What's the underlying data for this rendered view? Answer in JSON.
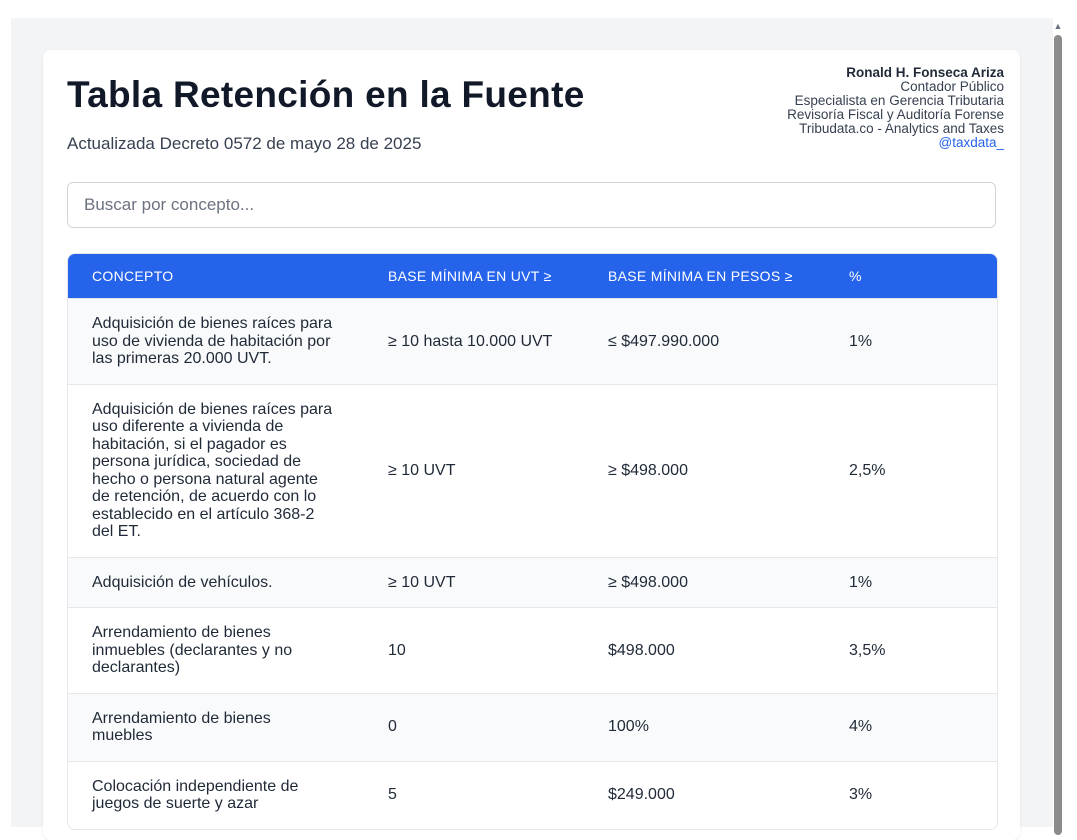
{
  "header": {
    "title": "Tabla Retención en la Fuente",
    "subtitle": "Actualizada Decreto 0572 de mayo 28 de 2025"
  },
  "author": {
    "name": "Ronald H. Fonseca Ariza",
    "line1": "Contador Público",
    "line2": "Especialista en Gerencia Tributaria",
    "line3": "Revisoría Fiscal y Auditoría Forense",
    "line4": "Tribudata.co - Analytics and Taxes",
    "handle": "@taxdata_"
  },
  "search": {
    "placeholder": "Buscar por concepto..."
  },
  "table": {
    "headers": [
      "CONCEPTO",
      "BASE MÍNIMA EN UVT ≥",
      "BASE MÍNIMA EN PESOS ≥",
      "%"
    ],
    "rows": [
      [
        "Adquisición de bienes raíces para uso de vivienda de habitación por las primeras 20.000 UVT.",
        "≥ 10 hasta 10.000 UVT",
        "≤ $497.990.000",
        "1%"
      ],
      [
        "Adquisición de bienes raíces para uso diferente a vivienda de habitación, si el pagador es persona jurídica, sociedad de hecho o persona natural agente de retención, de acuerdo con lo establecido en el artículo 368-2 del ET.",
        "≥ 10 UVT",
        "≥ $498.000",
        "2,5%"
      ],
      [
        "Adquisición de vehículos.",
        "≥ 10 UVT",
        "≥ $498.000",
        "1%"
      ],
      [
        "Arrendamiento de bienes inmuebles (declarantes y no declarantes)",
        "10",
        "$498.000",
        "3,5%"
      ],
      [
        "Arrendamiento de bienes muebles",
        "0",
        "100%",
        "4%"
      ],
      [
        "Colocación independiente de juegos de suerte y azar",
        "5",
        "$249.000",
        "3%"
      ]
    ]
  },
  "colors": {
    "accent": "#2563eb",
    "title": "#111827"
  }
}
